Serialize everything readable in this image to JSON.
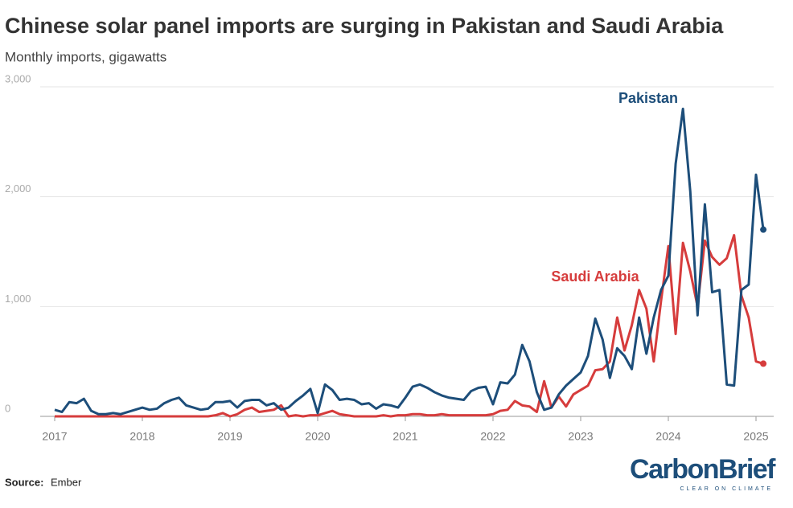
{
  "chart_data": {
    "type": "line",
    "title": "Chinese solar panel imports are surging in Pakistan and Saudi Arabia",
    "subtitle": "Monthly imports, gigawatts",
    "categories": [
      "2017",
      null,
      null,
      null,
      null,
      null,
      null,
      null,
      null,
      null,
      null,
      null,
      "2018",
      null,
      null,
      null,
      null,
      null,
      null,
      null,
      null,
      null,
      null,
      null,
      "2019",
      null,
      null,
      null,
      null,
      null,
      null,
      null,
      null,
      null,
      null,
      null,
      "2020",
      null,
      null,
      null,
      null,
      null,
      null,
      null,
      null,
      null,
      null,
      null,
      "2021",
      null,
      null,
      null,
      null,
      null,
      null,
      null,
      null,
      null,
      null,
      null,
      "2022",
      null,
      null,
      null,
      null,
      null,
      null,
      null,
      null,
      null,
      null,
      null,
      "2023",
      null,
      null,
      null,
      null,
      null,
      null,
      null,
      null,
      null,
      null,
      null,
      "2024",
      null,
      null,
      null,
      null,
      null,
      null,
      null,
      null,
      null,
      null,
      null,
      "2025",
      null
    ],
    "series": [
      {
        "name": "Saudi Arabia",
        "color": "#d63c3c",
        "values": [
          0,
          0,
          0,
          0,
          0,
          0,
          0,
          0,
          0,
          0,
          0,
          0,
          0,
          0,
          0,
          0,
          0,
          0,
          0,
          0,
          0,
          0,
          10,
          30,
          0,
          20,
          60,
          80,
          40,
          50,
          60,
          100,
          0,
          10,
          0,
          10,
          10,
          30,
          50,
          20,
          10,
          0,
          0,
          0,
          0,
          10,
          0,
          10,
          10,
          20,
          20,
          10,
          10,
          20,
          10,
          10,
          10,
          10,
          10,
          10,
          20,
          50,
          60,
          140,
          100,
          90,
          40,
          320,
          80,
          180,
          90,
          200,
          240,
          280,
          420,
          430,
          500,
          900,
          600,
          830,
          1150,
          980,
          500,
          1050,
          1550,
          750,
          1580,
          1320,
          1000,
          1600,
          1450,
          1380,
          1440,
          1650,
          1100,
          900,
          500,
          480
        ]
      },
      {
        "name": "Pakistan",
        "color": "#1d4e7a",
        "values": [
          60,
          40,
          130,
          120,
          160,
          50,
          20,
          20,
          30,
          20,
          40,
          60,
          80,
          60,
          70,
          120,
          150,
          170,
          100,
          80,
          60,
          70,
          130,
          130,
          140,
          80,
          140,
          150,
          150,
          100,
          120,
          60,
          80,
          140,
          190,
          250,
          30,
          290,
          240,
          150,
          160,
          150,
          110,
          120,
          70,
          110,
          100,
          80,
          170,
          270,
          290,
          260,
          220,
          190,
          170,
          160,
          150,
          230,
          260,
          270,
          110,
          310,
          300,
          380,
          650,
          500,
          220,
          60,
          80,
          200,
          280,
          340,
          400,
          550,
          890,
          700,
          350,
          620,
          550,
          430,
          900,
          570,
          900,
          1150,
          1280,
          2300,
          2800,
          2050,
          920,
          1930,
          1130,
          1150,
          290,
          280,
          1150,
          1200,
          2200,
          1700
        ]
      }
    ],
    "ylim": [
      0,
      3000
    ],
    "yticks": [
      0,
      {
        "value": 1000,
        "label": "1,000"
      },
      {
        "value": 2000,
        "label": "2,000"
      },
      {
        "value": 3000,
        "label": "3,000"
      }
    ],
    "grid": true,
    "source_label": "Source:",
    "source": "Ember",
    "logo": "CarbonBrief",
    "logo_tagline": "CLEAR ON CLIMATE"
  }
}
